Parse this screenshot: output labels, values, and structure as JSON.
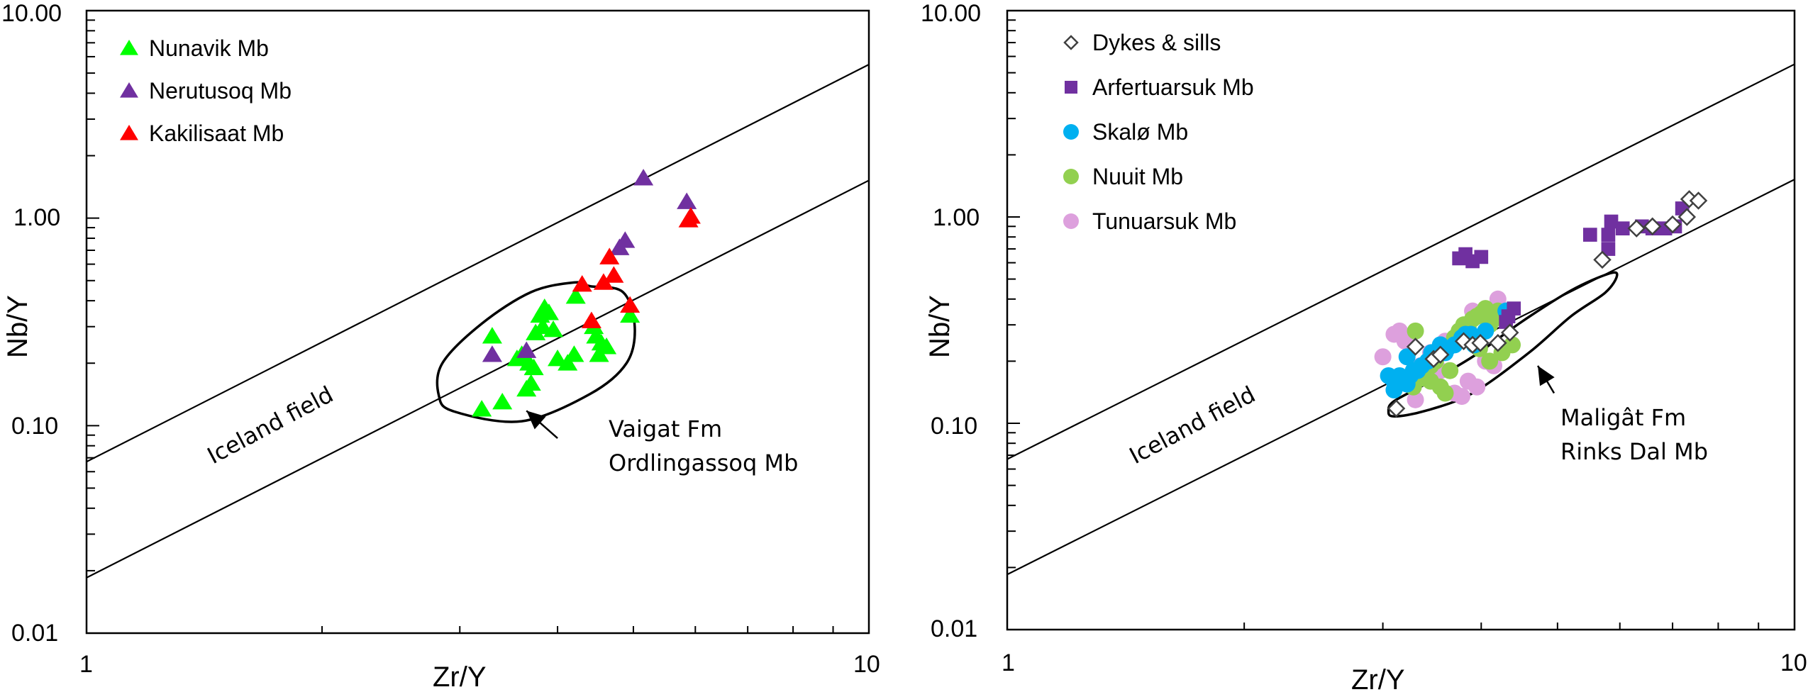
{
  "chart_data": [
    {
      "type": "scatter",
      "id": "left",
      "xscale": "log",
      "yscale": "log",
      "xlim": [
        1,
        10
      ],
      "ylim": [
        0.01,
        10
      ],
      "xlabel": "Zr/Y",
      "ylabel": "Nb/Y",
      "xticks": [
        "1",
        "10"
      ],
      "yticks": [
        "10.00",
        "1.00",
        "0.10",
        "0.01"
      ],
      "legend_position": "top-left",
      "reference_lines": [
        {
          "name": "iceland-upper",
          "x": [
            1,
            10
          ],
          "y": [
            0.067,
            5.5
          ]
        },
        {
          "name": "iceland-lower",
          "x": [
            1,
            10
          ],
          "y": [
            0.0185,
            1.52
          ]
        }
      ],
      "field_label": "Iceland field",
      "field_outline": {
        "name": "Vaigat Fm Ordlingassoq Mb",
        "points": [
          [
            2.95,
            0.117
          ],
          [
            3.6,
            0.105
          ],
          [
            4.4,
            0.142
          ],
          [
            4.9,
            0.2
          ],
          [
            5.02,
            0.3
          ],
          [
            4.85,
            0.44
          ],
          [
            4.4,
            0.47
          ],
          [
            4.2,
            0.49
          ],
          [
            3.7,
            0.44
          ],
          [
            3.2,
            0.31
          ],
          [
            2.85,
            0.2
          ],
          [
            2.82,
            0.14
          ],
          [
            2.95,
            0.117
          ]
        ]
      },
      "annotation": {
        "lines": [
          "Vaigat Fm",
          "Ordlingassoq Mb"
        ],
        "arrow_from": [
          4.0,
          0.087
        ],
        "arrow_to": [
          3.65,
          0.118
        ]
      },
      "series": [
        {
          "name": "Nunavik Mb",
          "marker": "triangle",
          "color": "#00ff00",
          "points": [
            [
              3.2,
              0.12
            ],
            [
              3.4,
              0.13
            ],
            [
              3.3,
              0.27
            ],
            [
              3.55,
              0.21
            ],
            [
              3.6,
              0.22
            ],
            [
              3.68,
              0.2
            ],
            [
              3.7,
              0.16
            ],
            [
              3.73,
              0.19
            ],
            [
              3.65,
              0.15
            ],
            [
              3.75,
              0.28
            ],
            [
              3.8,
              0.34
            ],
            [
              3.85,
              0.37
            ],
            [
              3.9,
              0.35
            ],
            [
              3.83,
              0.3
            ],
            [
              3.95,
              0.29
            ],
            [
              4.0,
              0.21
            ],
            [
              4.12,
              0.2
            ],
            [
              4.2,
              0.22
            ],
            [
              4.22,
              0.42
            ],
            [
              4.45,
              0.3
            ],
            [
              4.48,
              0.27
            ],
            [
              4.55,
              0.25
            ],
            [
              4.52,
              0.22
            ],
            [
              4.62,
              0.24
            ],
            [
              4.95,
              0.34
            ]
          ]
        },
        {
          "name": "Nerutusoq Mb",
          "marker": "triangle",
          "color": "#7030a0",
          "points": [
            [
              3.3,
              0.22
            ],
            [
              3.65,
              0.23
            ],
            [
              4.8,
              0.72
            ],
            [
              4.88,
              0.78
            ],
            [
              5.15,
              1.56
            ],
            [
              5.85,
              1.2
            ]
          ]
        },
        {
          "name": "Kakilisaat Mb",
          "marker": "triangle",
          "color": "#ff0000",
          "points": [
            [
              4.3,
              0.48
            ],
            [
              4.42,
              0.32
            ],
            [
              4.58,
              0.49
            ],
            [
              4.72,
              0.53
            ],
            [
              4.66,
              0.65
            ],
            [
              4.95,
              0.38
            ],
            [
              5.92,
              1.02
            ],
            [
              5.88,
              0.98
            ]
          ]
        }
      ]
    },
    {
      "type": "scatter",
      "id": "right",
      "xscale": "log",
      "yscale": "log",
      "xlim": [
        1,
        10
      ],
      "ylim": [
        0.01,
        10
      ],
      "xlabel": "Zr/Y",
      "ylabel": "Nb/Y",
      "xticks": [
        "1",
        "10"
      ],
      "yticks": [
        "10.00",
        "1.00",
        "0.10",
        "0.01"
      ],
      "legend_position": "top-left",
      "reference_lines": [
        {
          "name": "iceland-upper",
          "x": [
            1,
            10
          ],
          "y": [
            0.067,
            5.5
          ]
        },
        {
          "name": "iceland-lower",
          "x": [
            1,
            10
          ],
          "y": [
            0.0185,
            1.52
          ]
        }
      ],
      "field_label": "Iceland field",
      "field_outline": {
        "name": "Maligât Fm Rinks Dal Mb",
        "points": [
          [
            3.1,
            0.108
          ],
          [
            3.4,
            0.115
          ],
          [
            3.9,
            0.14
          ],
          [
            4.6,
            0.22
          ],
          [
            5.2,
            0.33
          ],
          [
            5.75,
            0.43
          ],
          [
            5.95,
            0.52
          ],
          [
            5.8,
            0.53
          ],
          [
            5.2,
            0.44
          ],
          [
            4.5,
            0.31
          ],
          [
            3.9,
            0.21
          ],
          [
            3.4,
            0.155
          ],
          [
            3.1,
            0.128
          ],
          [
            3.05,
            0.115
          ],
          [
            3.1,
            0.108
          ]
        ]
      },
      "annotation": {
        "lines": [
          "Maligât Fm",
          "Rinks Dal Mb"
        ],
        "arrow_from": [
          4.95,
          0.14
        ],
        "arrow_to": [
          4.72,
          0.19
        ]
      },
      "series": [
        {
          "name": "Dykes & sills",
          "marker": "diamond-open",
          "color": "#404040",
          "points": [
            [
              3.12,
              0.118
            ],
            [
              3.3,
              0.235
            ],
            [
              3.48,
              0.205
            ],
            [
              3.55,
              0.215
            ],
            [
              3.8,
              0.25
            ],
            [
              3.9,
              0.24
            ],
            [
              3.99,
              0.245
            ],
            [
              4.2,
              0.245
            ],
            [
              4.35,
              0.275
            ],
            [
              5.7,
              0.62
            ],
            [
              6.3,
              0.88
            ],
            [
              6.6,
              0.9
            ],
            [
              7.0,
              0.92
            ],
            [
              7.3,
              1.0
            ],
            [
              7.35,
              1.22
            ],
            [
              7.55,
              1.2
            ]
          ]
        },
        {
          "name": "Arfertuarsuk Mb",
          "marker": "square",
          "color": "#7030a0",
          "points": [
            [
              3.75,
              0.63
            ],
            [
              3.82,
              0.66
            ],
            [
              3.9,
              0.61
            ],
            [
              4.0,
              0.64
            ],
            [
              4.33,
              0.33
            ],
            [
              4.4,
              0.36
            ],
            [
              4.3,
              0.31
            ],
            [
              5.5,
              0.82
            ],
            [
              5.8,
              0.7
            ],
            [
              5.8,
              0.82
            ],
            [
              5.85,
              0.95
            ],
            [
              6.05,
              0.88
            ],
            [
              6.4,
              0.9
            ],
            [
              6.6,
              0.88
            ],
            [
              6.85,
              0.88
            ],
            [
              7.05,
              0.9
            ],
            [
              7.2,
              1.1
            ]
          ]
        },
        {
          "name": "Skalø Mb",
          "marker": "circle",
          "color": "#00b0f0",
          "points": [
            [
              3.05,
              0.17
            ],
            [
              3.1,
              0.16
            ],
            [
              3.15,
              0.17
            ],
            [
              3.22,
              0.155
            ],
            [
              3.25,
              0.17
            ],
            [
              3.28,
              0.18
            ],
            [
              3.32,
              0.18
            ],
            [
              3.36,
              0.19
            ],
            [
              3.22,
              0.21
            ],
            [
              3.42,
              0.2
            ],
            [
              3.46,
              0.22
            ],
            [
              3.5,
              0.22
            ],
            [
              3.55,
              0.24
            ],
            [
              3.6,
              0.22
            ],
            [
              3.62,
              0.23
            ],
            [
              3.7,
              0.24
            ],
            [
              3.78,
              0.26
            ],
            [
              3.82,
              0.27
            ],
            [
              3.88,
              0.27
            ],
            [
              3.95,
              0.26
            ],
            [
              4.05,
              0.28
            ],
            [
              3.92,
              0.24
            ],
            [
              4.3,
              0.35
            ],
            [
              3.1,
              0.145
            ]
          ]
        },
        {
          "name": "Nuuit Mb",
          "marker": "circle",
          "color": "#92d050",
          "points": [
            [
              3.3,
              0.28
            ],
            [
              3.28,
              0.15
            ],
            [
              3.35,
              0.165
            ],
            [
              3.4,
              0.175
            ],
            [
              3.45,
              0.19
            ],
            [
              3.5,
              0.2
            ],
            [
              3.55,
              0.15
            ],
            [
              3.6,
              0.14
            ],
            [
              3.65,
              0.18
            ],
            [
              3.7,
              0.26
            ],
            [
              3.75,
              0.28
            ],
            [
              3.8,
              0.3
            ],
            [
              3.85,
              0.29
            ],
            [
              3.9,
              0.32
            ],
            [
              3.95,
              0.33
            ],
            [
              4.0,
              0.34
            ],
            [
              4.05,
              0.36
            ],
            [
              4.1,
              0.3
            ],
            [
              4.15,
              0.32
            ],
            [
              4.2,
              0.35
            ],
            [
              4.25,
              0.22
            ],
            [
              4.1,
              0.2
            ],
            [
              4.38,
              0.24
            ],
            [
              3.98,
              0.23
            ],
            [
              3.55,
              0.23
            ],
            [
              3.45,
              0.16
            ]
          ]
        },
        {
          "name": "Tunuarsuk Mb",
          "marker": "circle",
          "color": "#dda0dd",
          "points": [
            [
              3.0,
              0.21
            ],
            [
              3.1,
              0.27
            ],
            [
              3.15,
              0.28
            ],
            [
              3.2,
              0.25
            ],
            [
              3.35,
              0.19
            ],
            [
              3.45,
              0.22
            ],
            [
              3.55,
              0.18
            ],
            [
              3.7,
              0.14
            ],
            [
              3.78,
              0.135
            ],
            [
              3.85,
              0.16
            ],
            [
              3.95,
              0.15
            ],
            [
              4.05,
              0.2
            ],
            [
              4.15,
              0.19
            ],
            [
              4.2,
              0.4
            ],
            [
              3.9,
              0.35
            ],
            [
              3.3,
              0.13
            ],
            [
              3.6,
              0.25
            ]
          ]
        }
      ]
    }
  ]
}
